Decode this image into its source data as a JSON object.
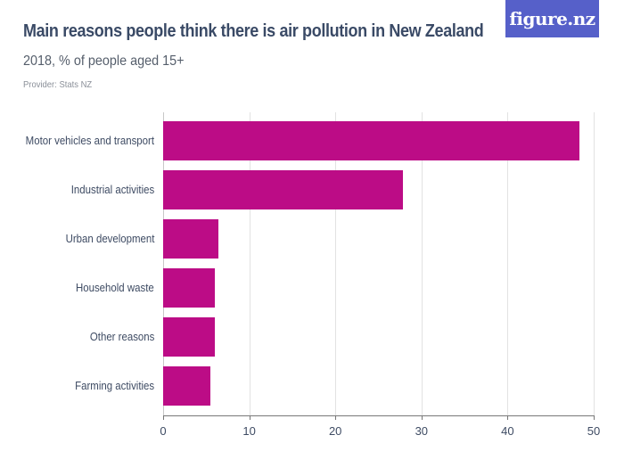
{
  "header": {
    "title": "Main reasons people think there is air pollution in New Zealand",
    "subtitle": "2018, % of people aged 15+",
    "provider": "Provider: Stats NZ",
    "logo": "figure.nz",
    "logo_color": "#5660c9"
  },
  "bar_color": "#bc0c86",
  "axis": {
    "ticks": [
      "0",
      "10",
      "20",
      "30",
      "40",
      "50"
    ]
  },
  "chart_data": {
    "type": "bar",
    "orientation": "horizontal",
    "title": "Main reasons people think there is air pollution in New Zealand",
    "subtitle": "2018, % of people aged 15+",
    "categories": [
      "Motor vehicles and transport",
      "Industrial activities",
      "Urban development",
      "Household waste",
      "Other reasons",
      "Farming activities"
    ],
    "values": [
      48.3,
      27.8,
      6.4,
      6.0,
      6.0,
      5.5
    ],
    "xlabel": "",
    "ylabel": "",
    "xlim": [
      0,
      50
    ],
    "xticks": [
      0,
      10,
      20,
      30,
      40,
      50
    ],
    "grid": true,
    "legend": null,
    "color": "#bc0c86"
  }
}
